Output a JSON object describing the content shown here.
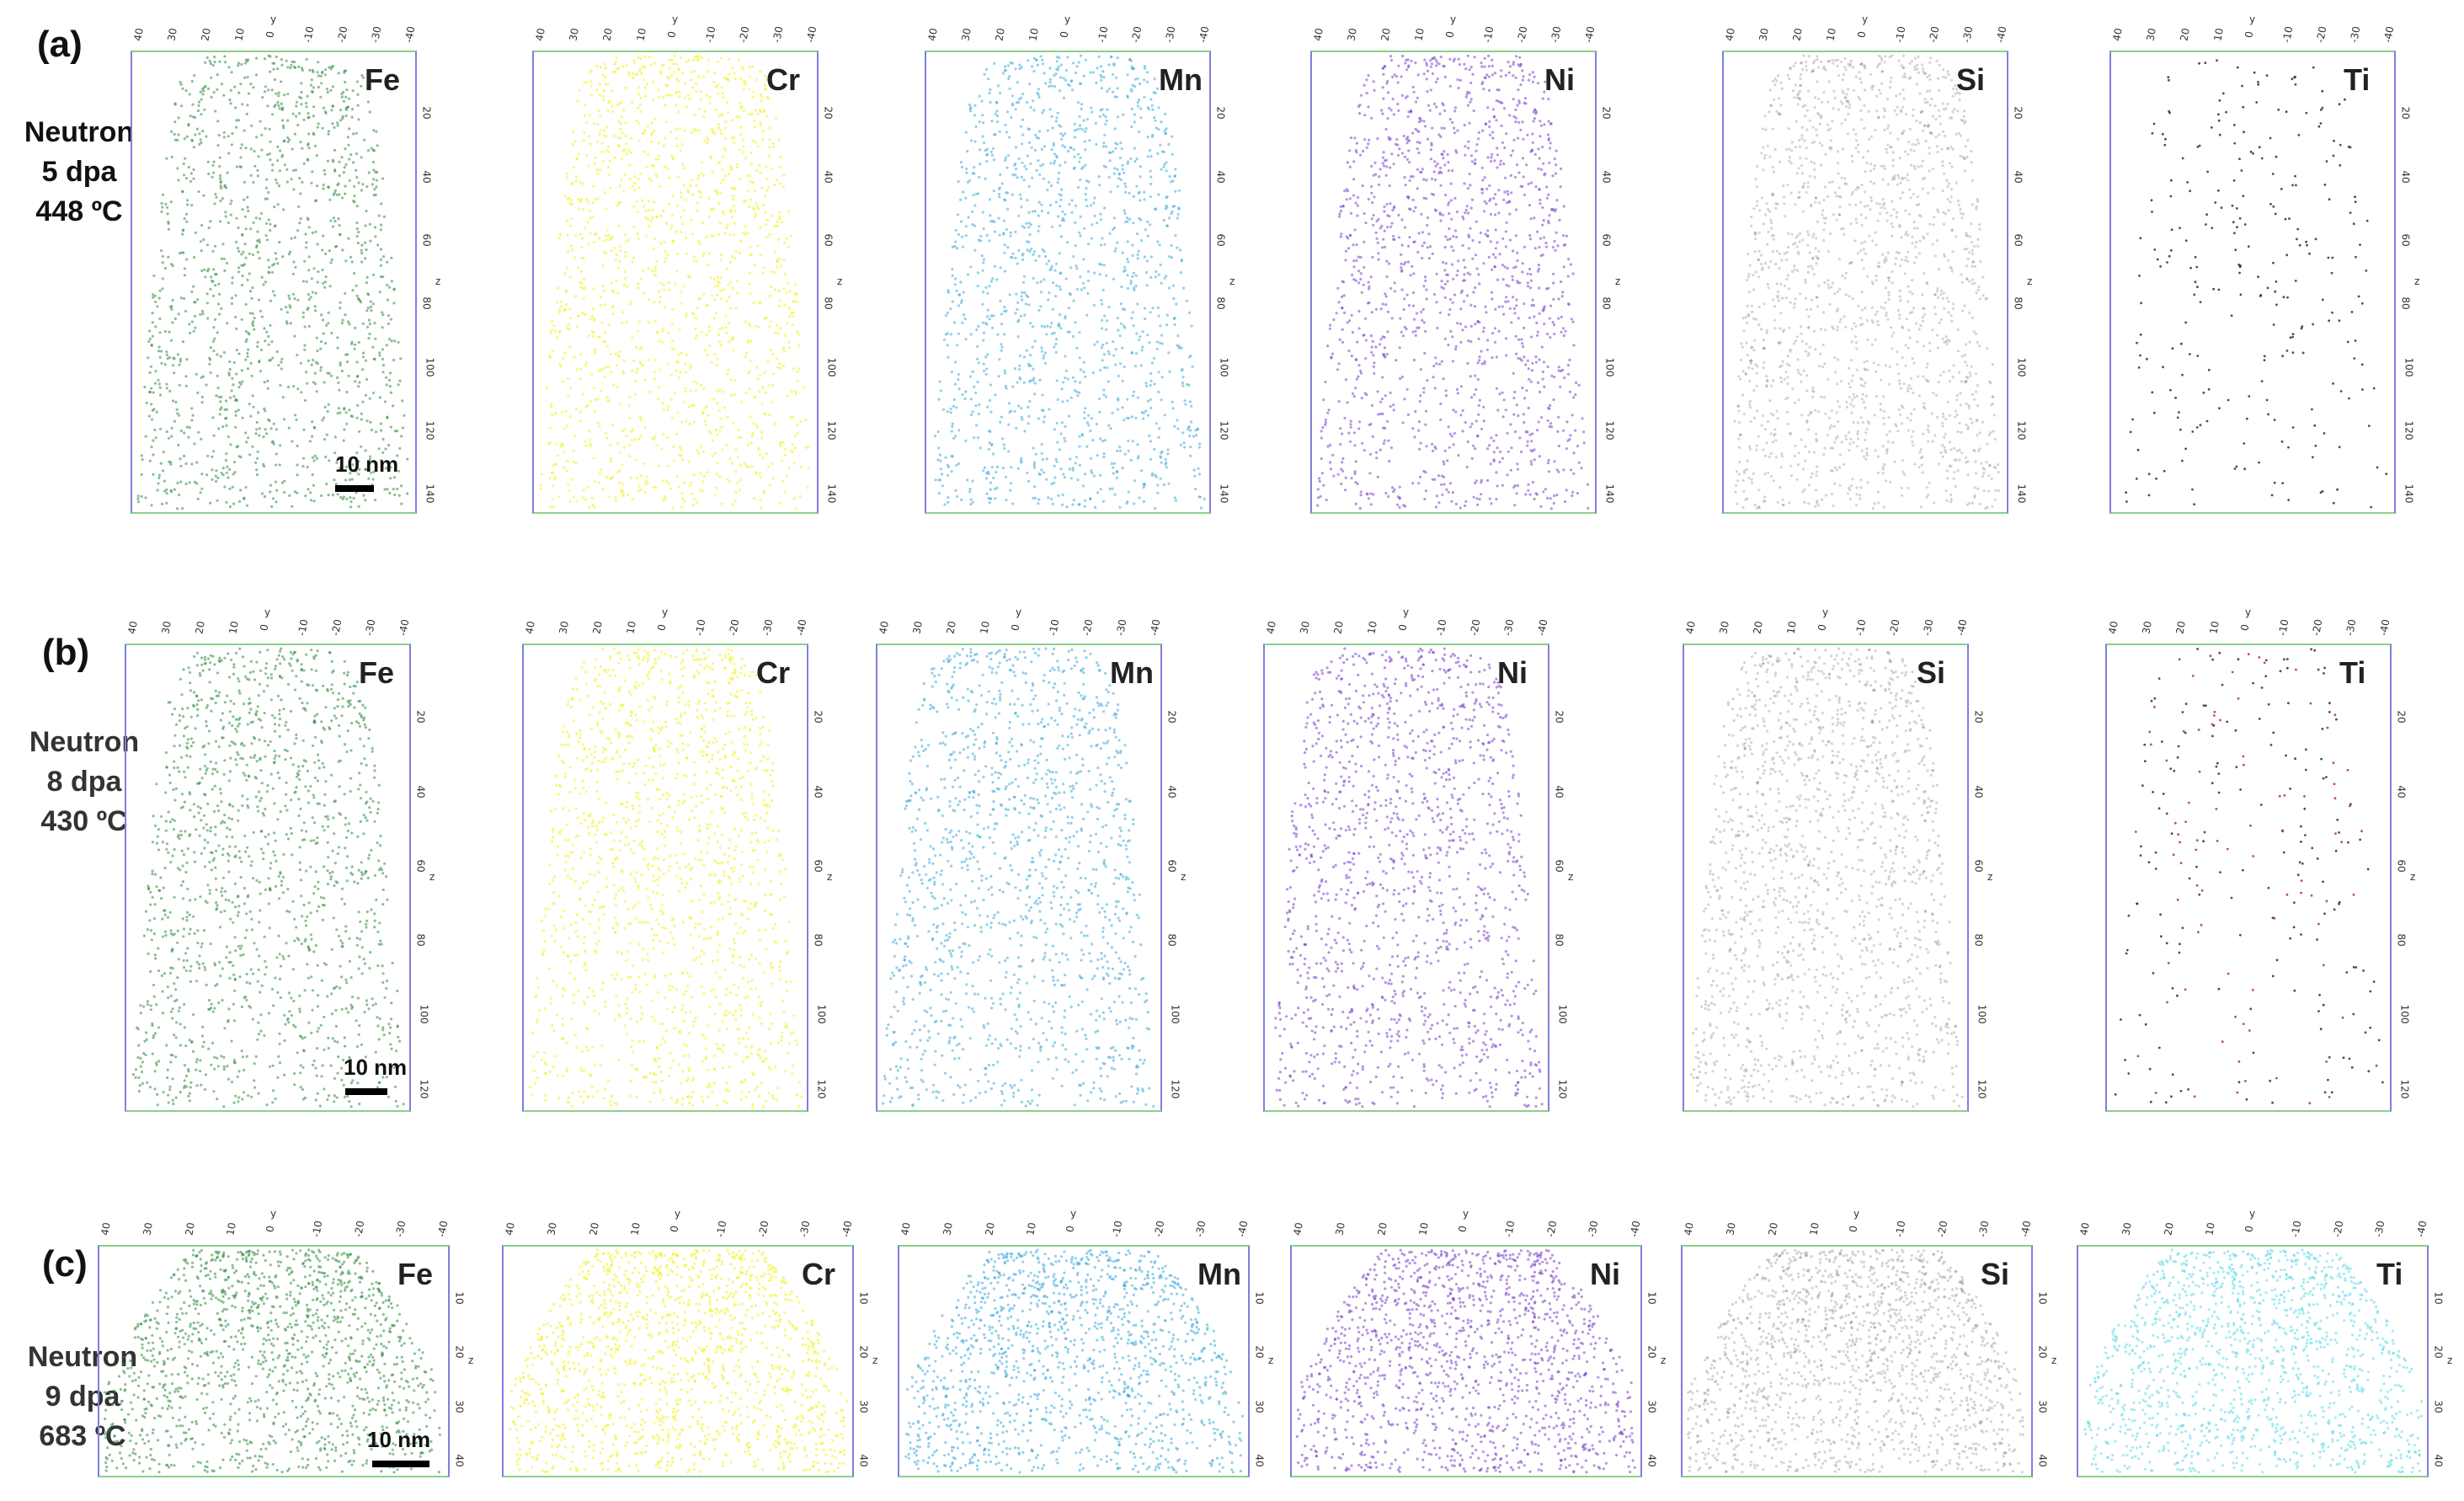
{
  "rows": [
    {
      "label": "(a)",
      "condition": [
        "Neutron",
        "5 dpa",
        "448 ºC"
      ],
      "scalebar": "10 nm"
    },
    {
      "label": "(b)",
      "condition": [
        "Neutron",
        "8 dpa",
        "430 ºC"
      ],
      "scalebar": "10 nm"
    },
    {
      "label": "(c)",
      "condition": [
        "Neutron",
        "9 dpa",
        "683 ºC"
      ],
      "scalebar": "10 nm"
    }
  ],
  "elements": [
    "Fe",
    "Cr",
    "Mn",
    "Ni",
    "Si",
    "Ti"
  ],
  "colors": {
    "Fe": "#2e8b3a",
    "Cr": "#f2f23a",
    "Mn": "#3aa8d8",
    "Ni": "#7a3ec8",
    "Si": "#555555",
    "Ti": "#222222",
    "Ti_c": "#5fd8e8",
    "axis_frame": "#7f7fe0",
    "box_frame": "#8ad08a"
  },
  "axis": {
    "x_ticks": [
      "40",
      "30",
      "20",
      "10",
      "0",
      "-10",
      "-20",
      "-30",
      "-40"
    ],
    "x_label": "y",
    "z_label": "z",
    "z_ticks_a": [
      "20",
      "40",
      "60",
      "80",
      "100",
      "120",
      "140"
    ],
    "z_ticks_b": [
      "20",
      "40",
      "60",
      "80",
      "100",
      "120"
    ],
    "z_ticks_c": [
      "10",
      "20",
      "30",
      "40"
    ]
  }
}
